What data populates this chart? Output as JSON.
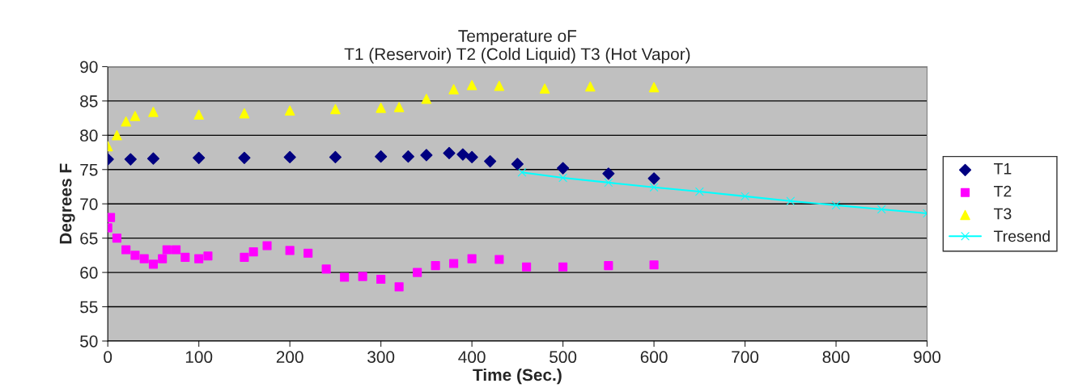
{
  "chart_data": {
    "type": "scatter",
    "title": "Temperature oF\nT1 (Reservoir) T2 (Cold Liquid) T3 (Hot Vapor)",
    "xlabel": "Time (Sec.)",
    "ylabel": "Degrees F",
    "xlim": [
      0,
      900
    ],
    "xticks": [
      0,
      100,
      200,
      300,
      400,
      500,
      600,
      700,
      800,
      900
    ],
    "ylim": [
      50,
      90
    ],
    "yticks": [
      50,
      55,
      60,
      65,
      70,
      75,
      80,
      85,
      90
    ],
    "grid": "y",
    "legend": "right",
    "series": [
      {
        "name": "T1",
        "color": "#000080",
        "marker": "diamond",
        "x": [
          0,
          25,
          50,
          100,
          150,
          200,
          250,
          300,
          330,
          350,
          375,
          390,
          400,
          420,
          450,
          500,
          550,
          600
        ],
        "values": [
          76.5,
          76.5,
          76.6,
          76.7,
          76.7,
          76.8,
          76.8,
          76.9,
          76.9,
          77.1,
          77.4,
          77.2,
          76.8,
          76.2,
          75.8,
          75.2,
          74.4,
          73.7
        ]
      },
      {
        "name": "T2",
        "color": "#ff00ff",
        "marker": "square",
        "x": [
          0,
          3,
          10,
          20,
          30,
          40,
          50,
          60,
          65,
          75,
          85,
          100,
          110,
          150,
          160,
          175,
          200,
          220,
          240,
          260,
          280,
          300,
          320,
          340,
          360,
          380,
          400,
          430,
          460,
          500,
          550,
          600
        ],
        "values": [
          66.5,
          68,
          65,
          63.3,
          62.5,
          62,
          61.2,
          62,
          63.3,
          63.3,
          62.2,
          62,
          62.4,
          62.2,
          63,
          63.9,
          63.2,
          62.8,
          60.5,
          59.3,
          59.4,
          59,
          57.9,
          60,
          61,
          61.3,
          62,
          61.9,
          60.8,
          60.8,
          61,
          61.1
        ]
      },
      {
        "name": "T3",
        "color": "#ffff00",
        "marker": "triangle",
        "x": [
          0,
          10,
          20,
          30,
          50,
          100,
          150,
          200,
          250,
          300,
          320,
          350,
          380,
          400,
          430,
          480,
          530,
          600
        ],
        "values": [
          78.4,
          80,
          82,
          82.8,
          83.4,
          83,
          83.2,
          83.6,
          83.8,
          84,
          84.1,
          85.3,
          86.7,
          87.3,
          87.2,
          86.8,
          87.1,
          87
        ]
      },
      {
        "name": "Tresend",
        "type": "line",
        "color": "#00ffff",
        "marker": "cross",
        "x": [
          455,
          500,
          550,
          600,
          650,
          700,
          750,
          800,
          850,
          900
        ],
        "values": [
          74.6,
          73.8,
          73.1,
          72.4,
          71.8,
          71.1,
          70.4,
          69.8,
          69.2,
          68.6
        ]
      }
    ]
  }
}
